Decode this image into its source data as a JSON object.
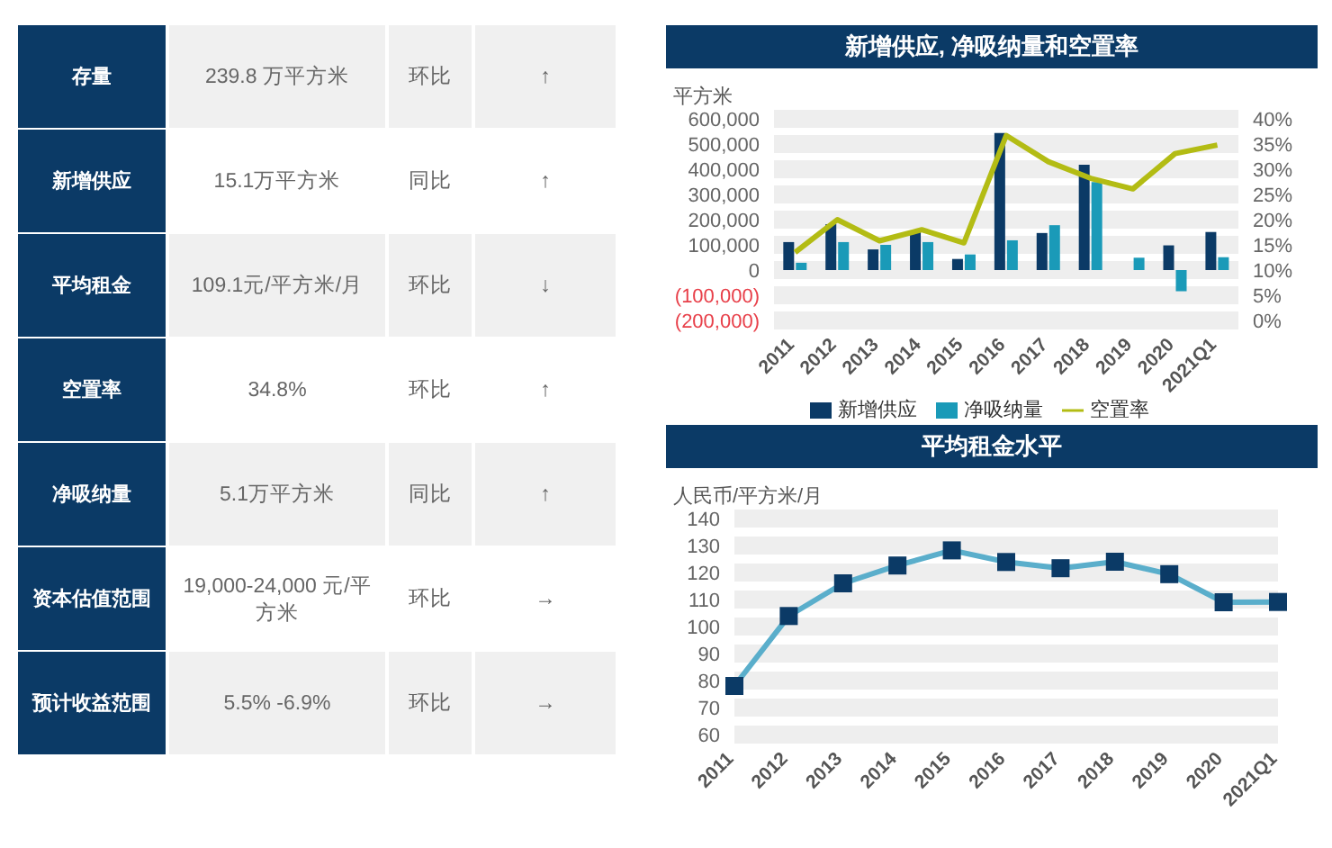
{
  "chart_data": [
    {
      "type": "other",
      "annotations": [
        "存量",
        "239.8 万平方米",
        "环比",
        "↑",
        "新增供应",
        "15.1万平方米",
        "同比",
        "↑",
        "平均租金",
        "109.1元/平方米/月",
        "环比",
        "↓",
        "空置率",
        "34.8%",
        "环比",
        "↑",
        "净吸纳量",
        "5.1万平方米",
        "同比",
        "↑",
        "资本估值范围",
        "19,000-24,000 元/平方米",
        "环比",
        "→",
        "预计收益范围",
        "5.5% -6.9%",
        "环比",
        "→"
      ]
    },
    {
      "type": "bar",
      "title": "新增供应, 净吸纳量和空置率",
      "ylabel": "平方米",
      "categories": [
        "2011",
        "2012",
        "2013",
        "2014",
        "2015",
        "2016",
        "2017",
        "2018",
        "2019",
        "2020",
        "2021Q1"
      ],
      "series": [
        {
          "name": "新增供应",
          "color": "#0b3a66",
          "values": [
            111000,
            182000,
            82000,
            155000,
            44000,
            544000,
            147000,
            418000,
            null,
            98000,
            151000
          ]
        },
        {
          "name": "净吸纳量",
          "color": "#1a9ab8",
          "values": [
            29000,
            111000,
            100000,
            111000,
            62000,
            118000,
            178000,
            349000,
            49000,
            -84000,
            51000
          ]
        },
        {
          "name": "空置率",
          "type": "line",
          "axis": "y2",
          "color": "#b3bc14",
          "values": [
            13.5,
            20.0,
            15.8,
            18.0,
            15.4,
            36.7,
            31.5,
            28.2,
            26.1,
            33.1,
            34.8
          ]
        }
      ],
      "ylim": [
        -200000,
        600000
      ],
      "yticks": [
        {
          "value": -200000,
          "label": "(200,000)"
        },
        {
          "value": -100000,
          "label": "(100,000)"
        },
        {
          "value": 0,
          "label": "0"
        },
        {
          "value": 100000,
          "label": "100,000"
        },
        {
          "value": 200000,
          "label": "200,000"
        },
        {
          "value": 300000,
          "label": "300,000"
        },
        {
          "value": 400000,
          "label": "400,000"
        },
        {
          "value": 500000,
          "label": "500,000"
        },
        {
          "value": 600000,
          "label": "600,000"
        }
      ],
      "y2lim": [
        0,
        40
      ],
      "y2ticks": [
        {
          "value": 0,
          "label": "0%"
        },
        {
          "value": 5,
          "label": "5%"
        },
        {
          "value": 10,
          "label": "10%"
        },
        {
          "value": 15,
          "label": "15%"
        },
        {
          "value": 20,
          "label": "20%"
        },
        {
          "value": 25,
          "label": "25%"
        },
        {
          "value": 30,
          "label": "30%"
        },
        {
          "value": 35,
          "label": "35%"
        },
        {
          "value": 40,
          "label": "40%"
        }
      ],
      "grid": "y",
      "legend": "bottom",
      "marker": "none"
    },
    {
      "type": "line",
      "title": "平均租金水平",
      "ylabel": "人民币/平方米/月",
      "categories": [
        "2011",
        "2012",
        "2013",
        "2014",
        "2015",
        "2016",
        "2017",
        "2018",
        "2019",
        "2020",
        "2021Q1"
      ],
      "series": [
        {
          "color": "#5aaecb",
          "values": [
            78.0,
            103.9,
            116.0,
            122.6,
            128.2,
            123.9,
            121.6,
            124.0,
            119.4,
            109.0,
            109.1
          ]
        }
      ],
      "ylim": [
        60,
        140
      ],
      "yticks": [
        60,
        70,
        80,
        90,
        100,
        110,
        120,
        130,
        140
      ],
      "grid": "y",
      "marker": "square"
    }
  ]
}
